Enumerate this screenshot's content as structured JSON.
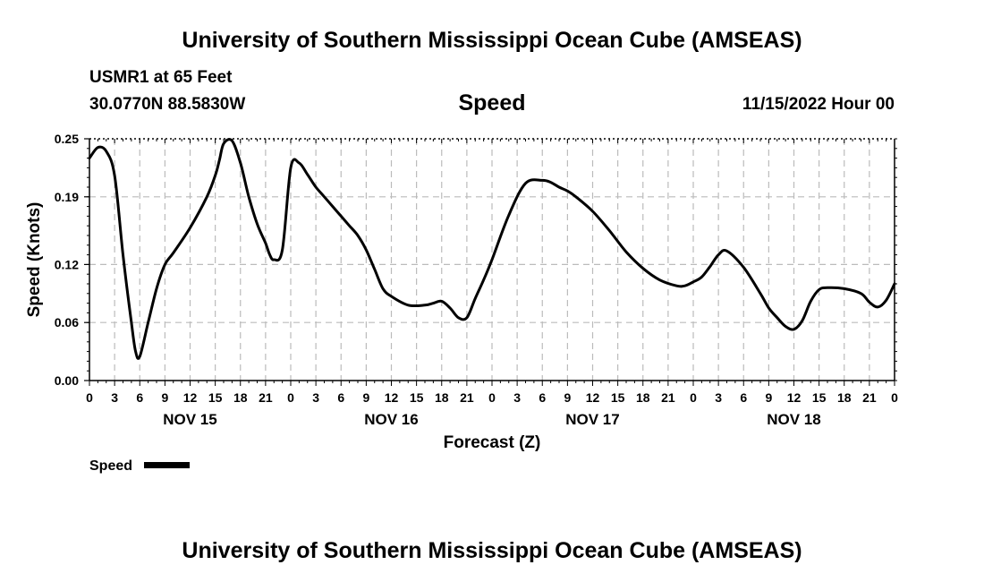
{
  "page": {
    "title_top": "University of Southern Mississippi Ocean Cube (AMSEAS)",
    "title_bottom": "University of Southern Mississippi Ocean Cube (AMSEAS)",
    "station": "USMR1 at 65 Feet",
    "coords": "30.0770N  88.5830W",
    "chart_title": "Speed",
    "date": "11/15/2022 Hour 00"
  },
  "colors": {
    "line": "#000000",
    "grid": "#bbbbbb",
    "background": "#ffffff"
  },
  "chart_data": {
    "type": "line",
    "title": "Speed",
    "xlabel": "Forecast (Z)",
    "ylabel": "Speed (Knots)",
    "xlim": [
      0,
      96
    ],
    "ylim": [
      0,
      0.25
    ],
    "yticks": [
      0.0,
      0.06,
      0.12,
      0.19,
      0.25
    ],
    "ytick_labels": [
      "0.00",
      "0.06",
      "0.12",
      "0.19",
      "0.25"
    ],
    "xticks": [
      0,
      3,
      6,
      9,
      12,
      15,
      18,
      21,
      24,
      27,
      30,
      33,
      36,
      39,
      42,
      45,
      48,
      51,
      54,
      57,
      60,
      63,
      66,
      69,
      72,
      75,
      78,
      81,
      84,
      87,
      90,
      93,
      96
    ],
    "xtick_labels": [
      "0",
      "3",
      "6",
      "9",
      "12",
      "15",
      "18",
      "21",
      "0",
      "3",
      "6",
      "9",
      "12",
      "15",
      "18",
      "21",
      "0",
      "3",
      "6",
      "9",
      "12",
      "15",
      "18",
      "21",
      "0",
      "3",
      "6",
      "9",
      "12",
      "15",
      "18",
      "21",
      "0"
    ],
    "day_labels": [
      {
        "hour": 12,
        "label": "NOV 15"
      },
      {
        "hour": 36,
        "label": "NOV 16"
      },
      {
        "hour": 60,
        "label": "NOV 17"
      },
      {
        "hour": 84,
        "label": "NOV 18"
      }
    ],
    "grid": true,
    "legend": {
      "label": "Speed",
      "position": "bottom-left"
    },
    "series": [
      {
        "name": "Speed",
        "x": [
          0,
          1,
          2,
          3,
          4,
          5,
          5.5,
          6,
          7,
          8,
          9,
          10,
          12,
          14,
          15,
          15.5,
          16,
          17,
          18,
          19,
          20,
          21,
          21.5,
          22,
          23,
          24,
          25,
          26,
          27,
          28,
          29,
          30,
          31,
          32,
          33,
          34,
          35,
          36,
          38,
          40,
          41,
          42,
          43,
          44,
          45,
          46,
          47,
          48,
          50,
          52,
          54,
          55,
          56,
          57,
          58,
          60,
          62,
          64,
          66,
          68,
          70,
          71,
          72,
          73,
          74,
          75,
          76,
          78,
          80,
          81,
          82,
          83,
          84,
          85,
          86,
          87,
          88,
          90,
          92,
          93,
          94,
          95,
          96
        ],
        "values": [
          0.23,
          0.241,
          0.237,
          0.212,
          0.13,
          0.06,
          0.03,
          0.025,
          0.06,
          0.095,
          0.12,
          0.132,
          0.158,
          0.19,
          0.212,
          0.228,
          0.245,
          0.248,
          0.225,
          0.19,
          0.162,
          0.142,
          0.13,
          0.125,
          0.135,
          0.22,
          0.225,
          0.213,
          0.2,
          0.19,
          0.18,
          0.17,
          0.16,
          0.15,
          0.135,
          0.115,
          0.095,
          0.087,
          0.078,
          0.078,
          0.08,
          0.082,
          0.075,
          0.065,
          0.065,
          0.085,
          0.104,
          0.125,
          0.171,
          0.204,
          0.207,
          0.205,
          0.2,
          0.196,
          0.19,
          0.175,
          0.155,
          0.133,
          0.116,
          0.104,
          0.098,
          0.098,
          0.102,
          0.107,
          0.118,
          0.13,
          0.134,
          0.117,
          0.09,
          0.075,
          0.065,
          0.056,
          0.053,
          0.062,
          0.082,
          0.094,
          0.096,
          0.095,
          0.09,
          0.081,
          0.076,
          0.083,
          0.1
        ]
      }
    ]
  }
}
